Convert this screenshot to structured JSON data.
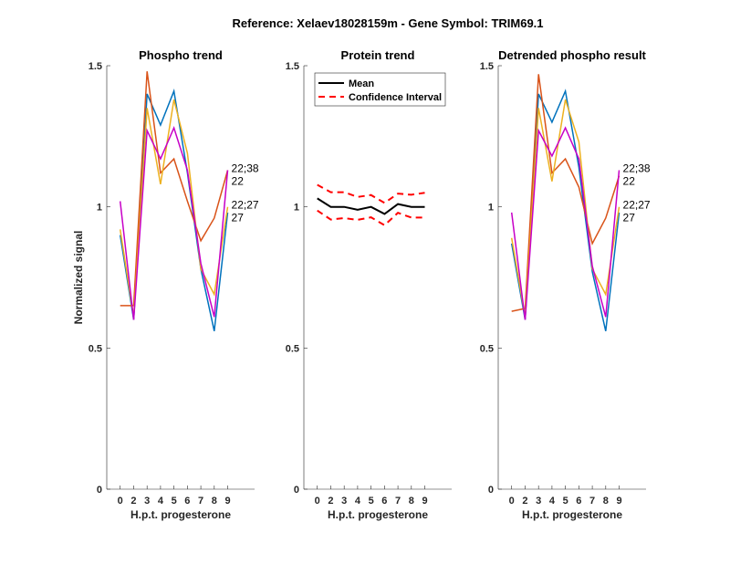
{
  "suptitle": "Reference:  Xelaev18028159m - Gene Symbol:  TRIM69.1",
  "chart_data": [
    {
      "type": "line",
      "title": "Phospho trend",
      "xlabel": "H.p.t. progesterone",
      "ylabel": "Normalized signal",
      "categories": [
        "0",
        "2",
        "3",
        "4",
        "5",
        "6",
        "7",
        "8",
        "9"
      ],
      "ylim": [
        0,
        1.5
      ],
      "yticks": [
        "0",
        "0.5",
        "1",
        "1.5"
      ],
      "grid": false,
      "series": [
        {
          "name": "22",
          "color": "#0072BD",
          "values": [
            0.9,
            0.6,
            1.4,
            1.29,
            1.41,
            1.12,
            0.78,
            0.56,
            0.98
          ]
        },
        {
          "name": "22;38",
          "color": "#D95319",
          "values": [
            0.65,
            0.65,
            1.48,
            1.12,
            1.17,
            1.02,
            0.88,
            0.96,
            1.13
          ]
        },
        {
          "name": "22;27",
          "color": "#EDB120",
          "values": [
            0.92,
            0.61,
            1.35,
            1.08,
            1.38,
            1.19,
            0.78,
            0.69,
            1.0
          ]
        },
        {
          "name": "27",
          "color": "#C700C7",
          "values": [
            1.02,
            0.6,
            1.27,
            1.17,
            1.28,
            1.13,
            0.8,
            0.61,
            1.13
          ]
        }
      ],
      "end_labels": [
        "22;38",
        "22",
        "22;27",
        "27"
      ]
    },
    {
      "type": "line",
      "title": "Protein trend",
      "xlabel": "H.p.t. progesterone",
      "ylabel": "",
      "categories": [
        "0",
        "2",
        "3",
        "4",
        "5",
        "6",
        "7",
        "8",
        "9"
      ],
      "ylim": [
        0,
        1.5
      ],
      "yticks": [
        "0",
        "0.5",
        "1",
        "1.5"
      ],
      "grid": false,
      "legend_position": "top-left",
      "series": [
        {
          "name": "Mean",
          "color": "#000000",
          "style": "solid",
          "values": [
            1.03,
            1.0,
            1.0,
            0.99,
            1.0,
            0.975,
            1.01,
            1.0,
            1.0
          ]
        },
        {
          "name": "Confidence Interval",
          "color": "#FF0000",
          "style": "dashed",
          "values": [
            1.078,
            1.052,
            1.052,
            1.035,
            1.042,
            1.014,
            1.047,
            1.043,
            1.05
          ]
        },
        {
          "name": "Confidence Interval (lower)",
          "color": "#FF0000",
          "style": "dashed",
          "legend": false,
          "values": [
            0.987,
            0.955,
            0.96,
            0.954,
            0.963,
            0.935,
            0.979,
            0.962,
            0.962
          ]
        }
      ],
      "legend": [
        "Mean",
        "Confidence Interval"
      ]
    },
    {
      "type": "line",
      "title": "Detrended phospho result",
      "xlabel": "H.p.t. progesterone",
      "ylabel": "",
      "categories": [
        "0",
        "2",
        "3",
        "4",
        "5",
        "6",
        "7",
        "8",
        "9"
      ],
      "ylim": [
        0,
        1.5
      ],
      "yticks": [
        "0",
        "0.5",
        "1",
        "1.5"
      ],
      "grid": false,
      "series": [
        {
          "name": "22",
          "color": "#0072BD",
          "values": [
            0.87,
            0.6,
            1.4,
            1.3,
            1.41,
            1.14,
            0.77,
            0.56,
            0.98
          ]
        },
        {
          "name": "22;38",
          "color": "#D95319",
          "values": [
            0.63,
            0.64,
            1.47,
            1.12,
            1.17,
            1.07,
            0.87,
            0.96,
            1.11
          ]
        },
        {
          "name": "22;27",
          "color": "#EDB120",
          "values": [
            0.89,
            0.61,
            1.35,
            1.09,
            1.38,
            1.23,
            0.78,
            0.69,
            1.0
          ]
        },
        {
          "name": "27",
          "color": "#C700C7",
          "values": [
            0.98,
            0.6,
            1.27,
            1.18,
            1.28,
            1.17,
            0.79,
            0.61,
            1.13
          ]
        }
      ],
      "end_labels": [
        "22;38",
        "22",
        "22;27",
        "27"
      ]
    }
  ]
}
